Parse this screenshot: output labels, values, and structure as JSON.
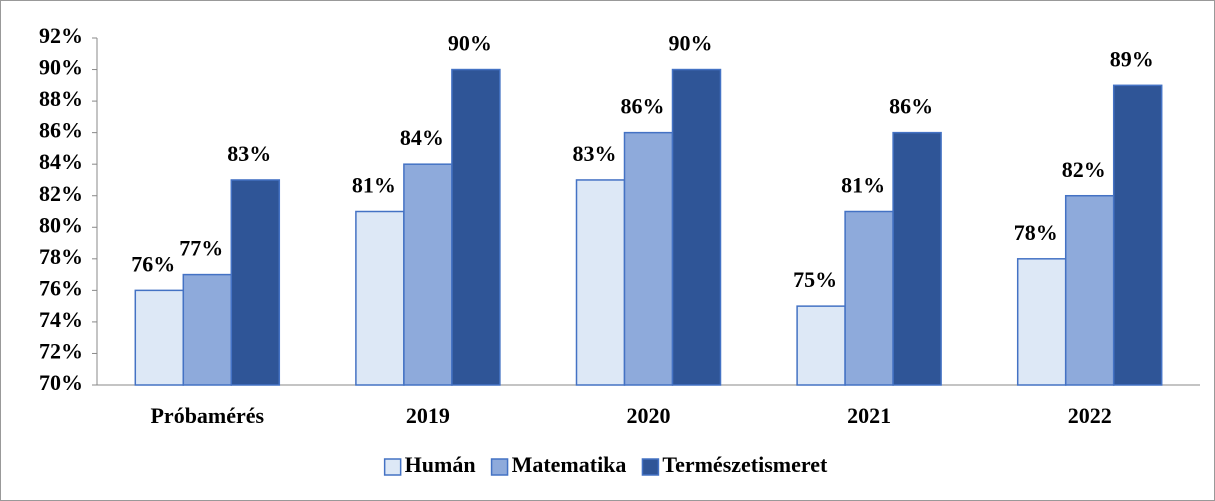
{
  "chart_data": {
    "type": "bar",
    "categories": [
      "Próbamérés",
      "2019",
      "2020",
      "2021",
      "2022"
    ],
    "series": [
      {
        "name": "Humán",
        "color": "#dde8f6",
        "values": [
          76,
          81,
          83,
          75,
          78
        ],
        "value_labels": [
          "76%",
          "81%",
          "83%",
          "75%",
          "78%"
        ]
      },
      {
        "name": "Matematika",
        "color": "#8eaadb",
        "values": [
          77,
          84,
          86,
          81,
          82
        ],
        "value_labels": [
          "77%",
          "84%",
          "86%",
          "81%",
          "82%"
        ]
      },
      {
        "name": "Természetismeret",
        "color": "#2f5597",
        "values": [
          83,
          90,
          90,
          86,
          89
        ],
        "value_labels": [
          "83%",
          "90%",
          "90%",
          "86%",
          "89%"
        ]
      }
    ],
    "ylim": [
      70,
      92
    ],
    "yticks": [
      {
        "value": 70,
        "label": "70%"
      },
      {
        "value": 72,
        "label": "72%"
      },
      {
        "value": 74,
        "label": "74%"
      },
      {
        "value": 76,
        "label": "76%"
      },
      {
        "value": 78,
        "label": "78%"
      },
      {
        "value": 80,
        "label": "80%"
      },
      {
        "value": 82,
        "label": "82%"
      },
      {
        "value": 84,
        "label": "84%"
      },
      {
        "value": 86,
        "label": "86%"
      },
      {
        "value": 88,
        "label": "88%"
      },
      {
        "value": 90,
        "label": "90%"
      },
      {
        "value": 92,
        "label": "92%"
      }
    ],
    "grid": false,
    "legend": "bottom"
  }
}
